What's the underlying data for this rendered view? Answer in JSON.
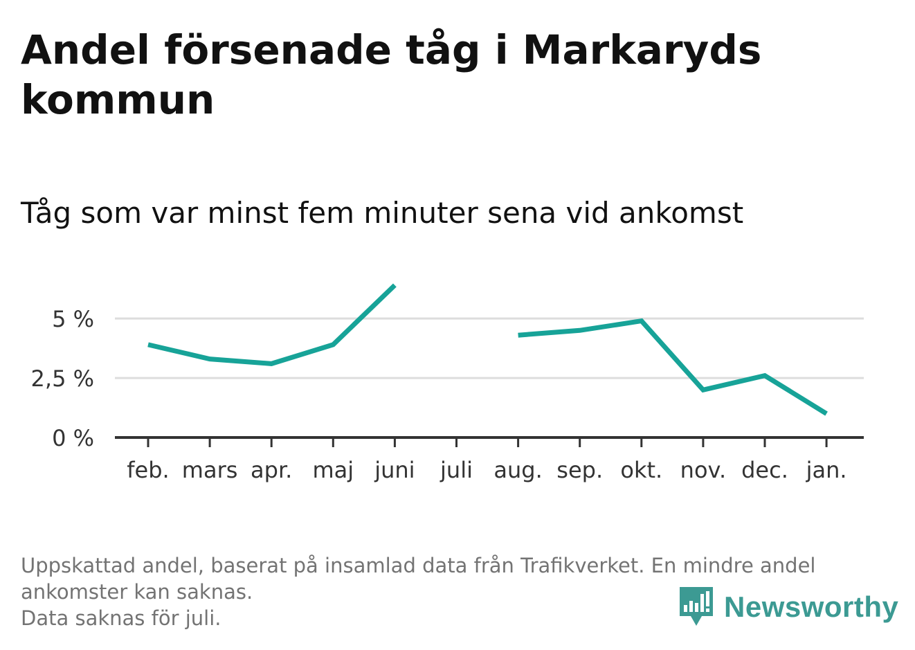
{
  "title": "Andel försenade tåg i Markaryds kommun",
  "subtitle": "Tåg som var minst fem minuter sena vid ankomst",
  "footnote": {
    "line1": "Uppskattad andel, baserat på insamlad data från Trafikverket. En mindre andel",
    "line2": "ankomster kan saknas.",
    "line3": "Data saknas för juli."
  },
  "brand": {
    "name": "Newsworthy",
    "icon": "newsworthy-logo-icon"
  },
  "colors": {
    "line": "#17a398",
    "grid": "#dddddd",
    "axis": "#333333",
    "brand": "#3c9a93"
  },
  "chart_data": {
    "type": "line",
    "title": "Andel försenade tåg i Markaryds kommun",
    "subtitle": "Tåg som var minst fem minuter sena vid ankomst",
    "xlabel": "",
    "ylabel": "",
    "categories": [
      "feb.",
      "mars",
      "apr.",
      "maj",
      "juni",
      "juli",
      "aug.",
      "sep.",
      "okt.",
      "nov.",
      "dec.",
      "jan."
    ],
    "series": [
      {
        "values": [
          3.9,
          3.3,
          3.1,
          3.9,
          6.4,
          null,
          4.3,
          4.5,
          4.9,
          2.0,
          2.6,
          1.0
        ]
      }
    ],
    "yticks": [
      {
        "value": 0,
        "label": "0 %"
      },
      {
        "value": 2.5,
        "label": "2,5 %"
      },
      {
        "value": 5,
        "label": "5 %"
      }
    ],
    "ylim": [
      0,
      6.4
    ],
    "grid": true,
    "legend": "none"
  }
}
